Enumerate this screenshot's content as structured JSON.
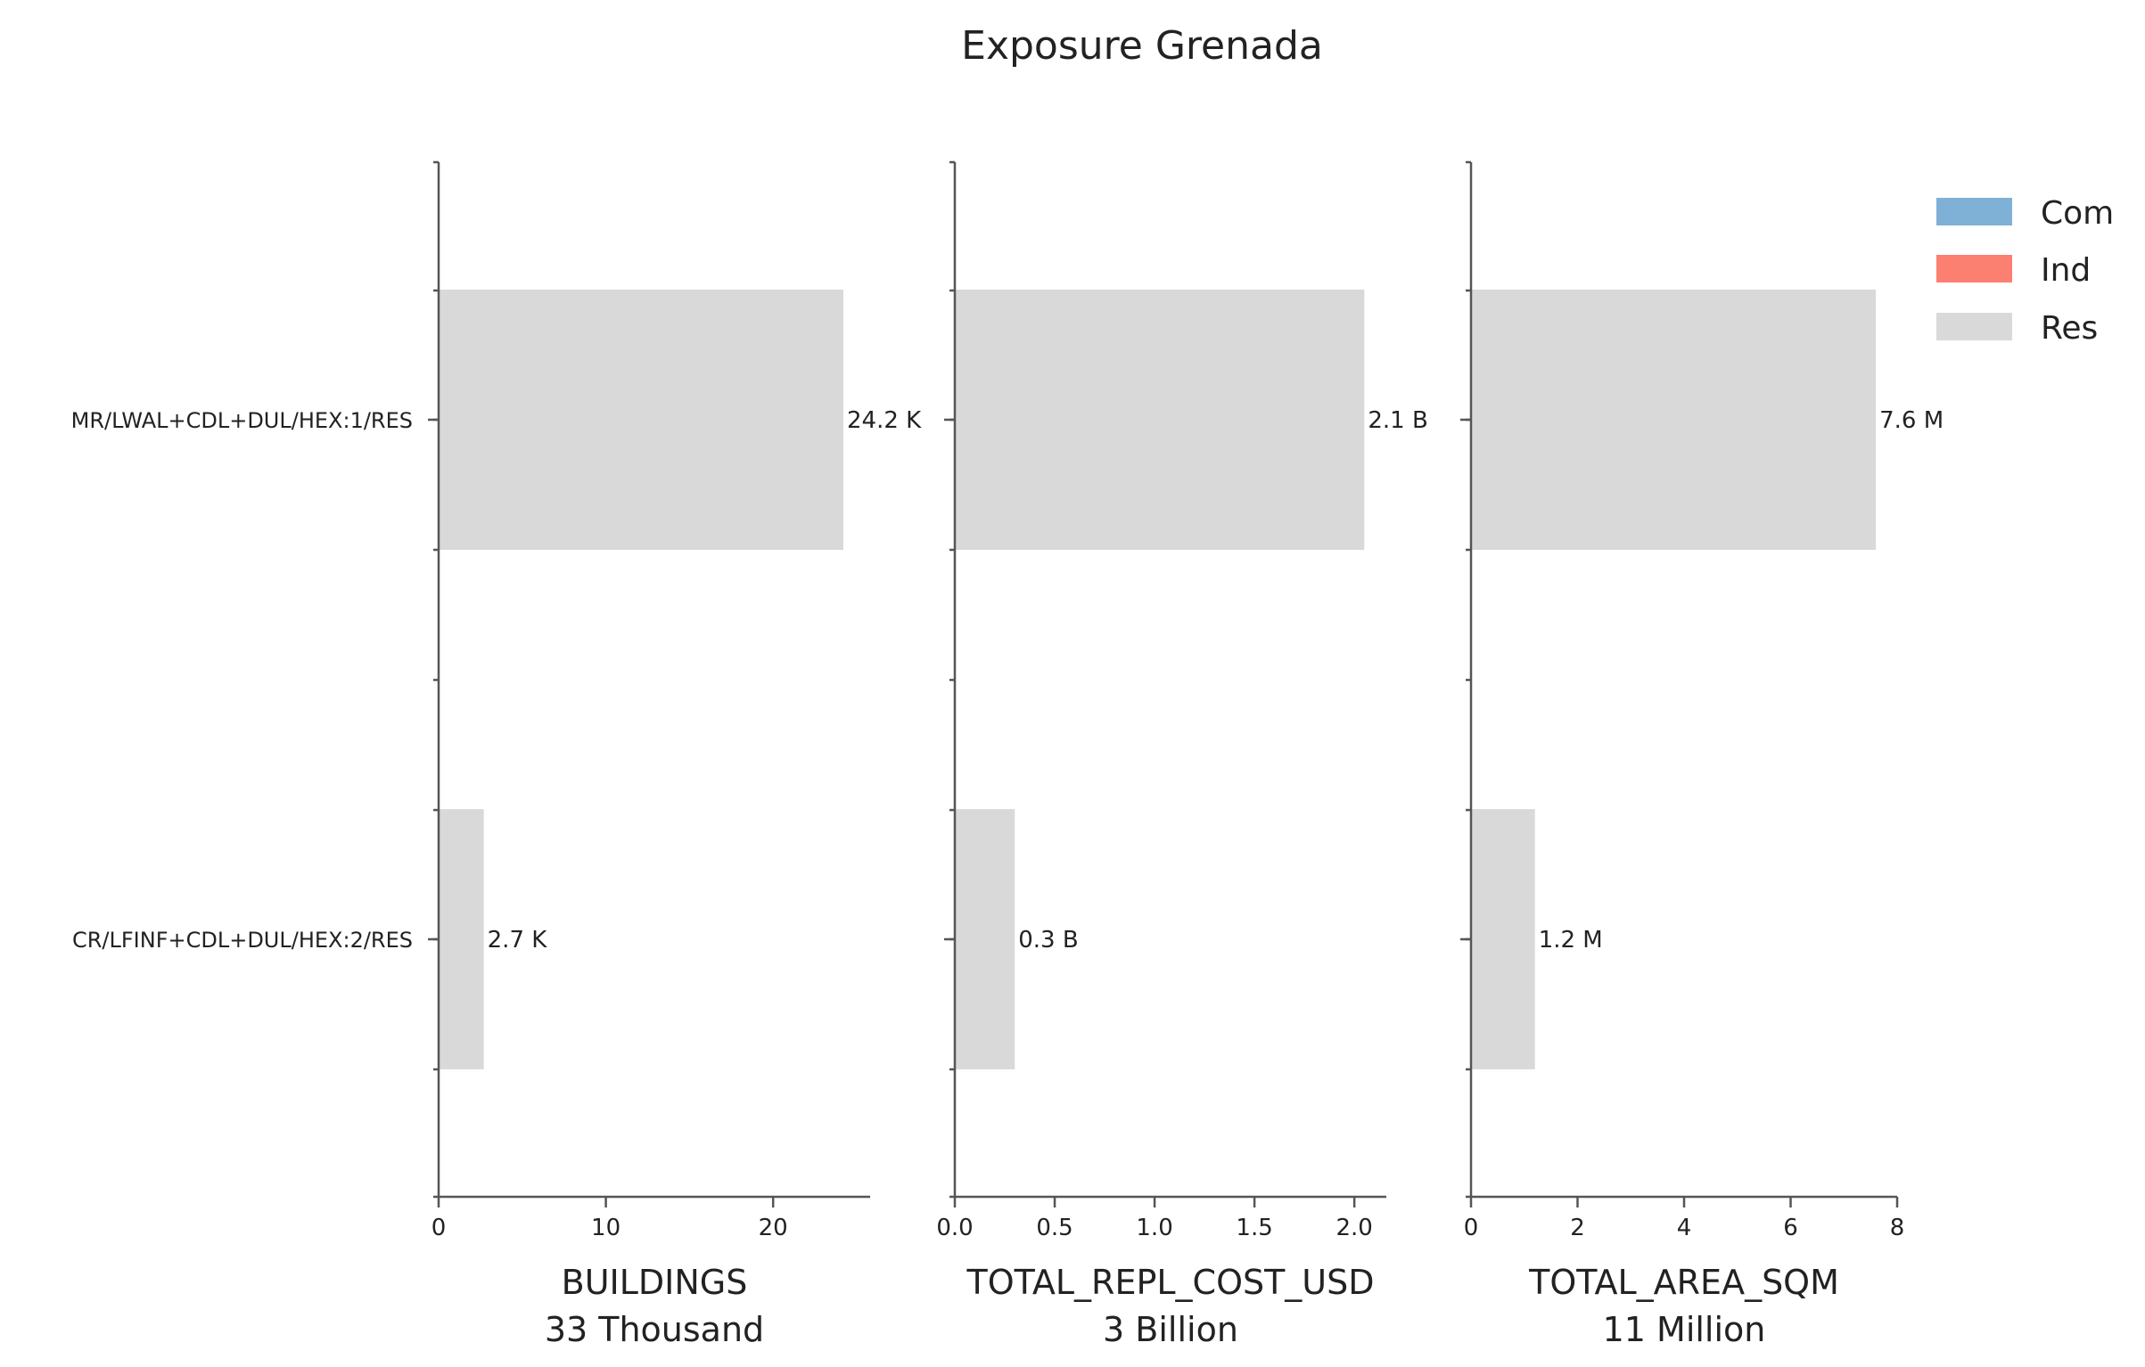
{
  "chart_data": {
    "type": "bar",
    "orientation": "horizontal",
    "title": "Exposure Grenada",
    "categories": [
      "MR/LWAL+CDL+DUL/HEX:1/RES",
      "CR/LFINF+CDL+DUL/HEX:2/RES"
    ],
    "legend": {
      "placement": "top-right",
      "items": [
        {
          "name": "Com",
          "color": "#7fb0d6"
        },
        {
          "name": "Ind",
          "color": "#fb8072"
        },
        {
          "name": "Res",
          "color": "#d9d9d9"
        }
      ]
    },
    "panels": [
      {
        "xlabel": "BUILDINGS",
        "total_label": "33 Thousand",
        "xlim": [
          0,
          25.8
        ],
        "xticks": [
          0,
          10,
          20
        ],
        "xtick_labels": [
          "0",
          "10",
          "20"
        ],
        "series": [
          {
            "name": "Res",
            "values": [
              24.2,
              2.7
            ]
          }
        ],
        "data_labels": [
          "24.2 K",
          "2.7 K"
        ]
      },
      {
        "xlabel": "TOTAL_REPL_COST_USD",
        "total_label": "3 Billion",
        "xlim": [
          0,
          2.16
        ],
        "xticks": [
          0,
          0.5,
          1.0,
          1.5,
          2.0
        ],
        "xtick_labels": [
          "0.0",
          "0.5",
          "1.0",
          "1.5",
          "2.0"
        ],
        "series": [
          {
            "name": "Res",
            "values": [
              2.05,
              0.3
            ]
          }
        ],
        "data_labels": [
          "2.1 B",
          "0.3 B"
        ]
      },
      {
        "xlabel": "TOTAL_AREA_SQM",
        "total_label": "11 Million",
        "xlim": [
          0,
          8
        ],
        "xticks": [
          0,
          2,
          4,
          6,
          8
        ],
        "xtick_labels": [
          "0",
          "2",
          "4",
          "6",
          "8"
        ],
        "series": [
          {
            "name": "Res",
            "values": [
              7.6,
              1.2
            ]
          }
        ],
        "data_labels": [
          "7.6 M",
          "1.2 M"
        ]
      }
    ]
  }
}
